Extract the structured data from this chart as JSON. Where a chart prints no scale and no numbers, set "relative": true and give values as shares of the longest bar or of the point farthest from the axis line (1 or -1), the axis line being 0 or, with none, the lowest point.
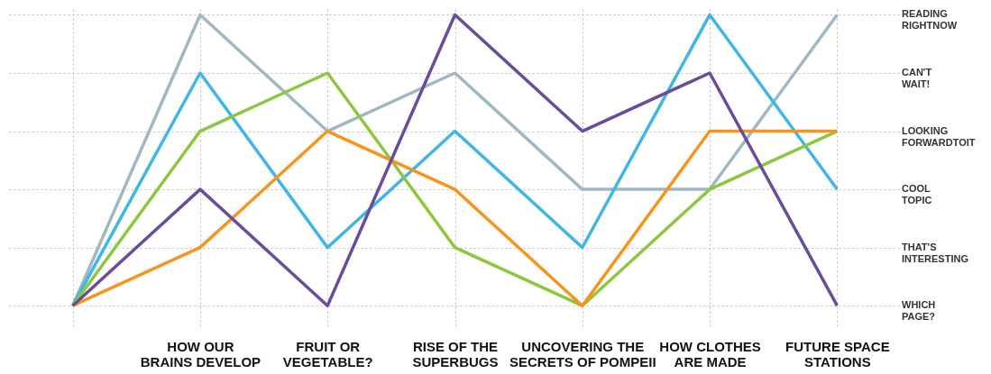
{
  "chart_data": {
    "type": "line",
    "categories": [
      null,
      "HOW OUR\nBRAINS DEVELOP",
      "FRUIT OR\nVEGETABLE?",
      "RISE OF THE\nSUPERBUGS",
      "UNCOVERING THE\nSECRETS OF POMPEII",
      "HOW CLOTHES\nARE MADE",
      "FUTURE SPACE\nSTATIONS"
    ],
    "relative": true,
    "annotations": [
      "WHICH\nPAGE?",
      "THAT'S\nINTERESTING",
      "COOL\nTOPIC",
      "LOOKING\nFORWARDTOIT",
      "CAN'T\nWAIT!",
      "READING\nRIGHTNOW"
    ],
    "series": [
      {
        "color": "#9fb8c4",
        "values": [
          0,
          1,
          0.6,
          0.8,
          0.4,
          0.4,
          1
        ]
      },
      {
        "color": "#3fb5e8",
        "values": [
          0,
          0.8,
          0.2,
          0.6,
          0.2,
          1,
          0.4
        ]
      },
      {
        "color": "#8dc63f",
        "values": [
          0,
          0.6,
          0.8,
          0.2,
          0,
          0.4,
          0.6
        ]
      },
      {
        "color": "#f7941d",
        "values": [
          0,
          0.2,
          0.6,
          0.4,
          0,
          0.6,
          0.6
        ]
      },
      {
        "color": "#6b4c9a",
        "values": [
          0,
          0.4,
          0,
          1,
          0.6,
          0.8,
          0
        ]
      }
    ],
    "grid": true,
    "line_style": "solid",
    "marker": "none",
    "legend": false
  }
}
